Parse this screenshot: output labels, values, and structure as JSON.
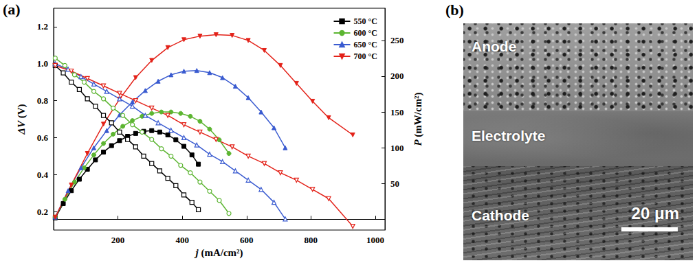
{
  "chart_data": {
    "type": "line",
    "panel_label": "(a)",
    "x_label": "j (mA/cm²)",
    "y_label": "ΔV (V)",
    "y2_label": "P (mW/cm²)",
    "xlim": [
      0,
      1030
    ],
    "xticks": [
      200,
      400,
      600,
      800,
      1000
    ],
    "ylim": [
      0.1,
      1.3
    ],
    "yticks": [
      0.2,
      0.4,
      0.6,
      0.8,
      {
        "value": 1,
        "label": "1.0"
      },
      1.2
    ],
    "y2lim": [
      -15,
      295
    ],
    "y2ticks": [
      50,
      100,
      150,
      200,
      250
    ],
    "grid": false,
    "legend": "upper right",
    "series": [
      {
        "name": "550 °C",
        "color": "#000000",
        "marker": "square",
        "axis": "y2",
        "x": [
          5,
          30,
          55,
          80,
          105,
          130,
          155,
          180,
          205,
          230,
          255,
          280,
          305,
          330,
          355,
          380,
          405,
          430,
          450
        ],
        "values": [
          2,
          22,
          40,
          56,
          70,
          83,
          94,
          103,
          110,
          116,
          120,
          123,
          124,
          122,
          118,
          111,
          102,
          90,
          77
        ]
      },
      {
        "name": "600 °C",
        "color": "#5cb531",
        "marker": "circle",
        "axis": "y2",
        "x": [
          5,
          35,
          65,
          95,
          125,
          155,
          185,
          215,
          245,
          275,
          305,
          335,
          365,
          395,
          425,
          455,
          485,
          515,
          545
        ],
        "values": [
          3,
          28,
          52,
          72,
          90,
          106,
          119,
          130,
          138,
          144,
          148,
          150,
          150,
          148,
          144,
          137,
          126,
          111,
          92
        ]
      },
      {
        "name": "650 °C",
        "color": "#3a5bd0",
        "marker": "triangle",
        "axis": "y2",
        "x": [
          5,
          45,
          85,
          125,
          165,
          205,
          245,
          285,
          325,
          365,
          405,
          445,
          485,
          525,
          565,
          605,
          645,
          685,
          720
        ],
        "values": [
          3,
          40,
          72,
          100,
          124,
          146,
          164,
          180,
          193,
          202,
          207,
          208,
          205,
          198,
          186,
          170,
          150,
          128,
          100
        ]
      },
      {
        "name": "700 °C",
        "color": "#e32219",
        "marker": "triangle_down",
        "axis": "y2",
        "x": [
          5,
          55,
          105,
          155,
          205,
          255,
          305,
          355,
          405,
          455,
          505,
          555,
          605,
          655,
          705,
          755,
          805,
          855,
          930
        ],
        "values": [
          3,
          48,
          92,
          133,
          168,
          198,
          222,
          240,
          251,
          256,
          258,
          257,
          250,
          236,
          215,
          190,
          165,
          142,
          118
        ]
      },
      {
        "name": "550 °C",
        "color": "#000000",
        "marker": "open_square",
        "axis": "y",
        "x": [
          5,
          30,
          55,
          80,
          105,
          130,
          155,
          180,
          205,
          230,
          255,
          280,
          305,
          330,
          355,
          380,
          405,
          430,
          450
        ],
        "values": [
          0.99,
          0.95,
          0.9,
          0.86,
          0.81,
          0.77,
          0.72,
          0.68,
          0.63,
          0.59,
          0.55,
          0.5,
          0.46,
          0.42,
          0.38,
          0.34,
          0.29,
          0.25,
          0.21
        ]
      },
      {
        "name": "600 °C",
        "color": "#5cb531",
        "marker": "open_circle",
        "axis": "y",
        "x": [
          5,
          35,
          65,
          95,
          125,
          155,
          185,
          215,
          245,
          275,
          305,
          335,
          365,
          395,
          425,
          455,
          485,
          515,
          545
        ],
        "values": [
          1.03,
          0.99,
          0.94,
          0.9,
          0.85,
          0.81,
          0.76,
          0.72,
          0.67,
          0.63,
          0.59,
          0.54,
          0.5,
          0.45,
          0.41,
          0.36,
          0.31,
          0.26,
          0.19
        ]
      },
      {
        "name": "650 °C",
        "color": "#3a5bd0",
        "marker": "open_triangle",
        "axis": "y",
        "x": [
          5,
          45,
          85,
          125,
          165,
          205,
          245,
          285,
          325,
          365,
          405,
          445,
          485,
          525,
          565,
          605,
          645,
          685,
          720
        ],
        "values": [
          1.0,
          0.97,
          0.93,
          0.89,
          0.85,
          0.81,
          0.77,
          0.72,
          0.68,
          0.64,
          0.6,
          0.56,
          0.51,
          0.47,
          0.42,
          0.37,
          0.32,
          0.25,
          0.16
        ]
      },
      {
        "name": "700 °C",
        "color": "#e32219",
        "marker": "open_triangle_down",
        "axis": "y",
        "x": [
          5,
          55,
          105,
          155,
          205,
          255,
          305,
          355,
          405,
          455,
          505,
          555,
          605,
          655,
          705,
          755,
          805,
          855,
          930
        ],
        "values": [
          0.99,
          0.96,
          0.92,
          0.88,
          0.84,
          0.8,
          0.76,
          0.72,
          0.67,
          0.63,
          0.59,
          0.55,
          0.5,
          0.46,
          0.41,
          0.37,
          0.32,
          0.27,
          0.12
        ]
      }
    ]
  },
  "micrograph": {
    "panel_label": "(b)",
    "layers": [
      "Anode",
      "Electrolyte",
      "Cathode"
    ],
    "scale_bar": "20 μm"
  }
}
